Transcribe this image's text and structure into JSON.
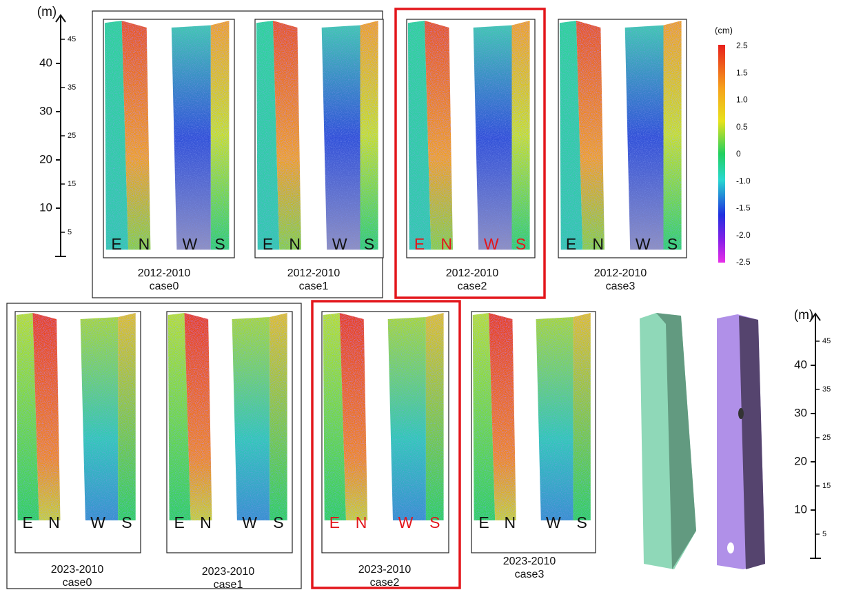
{
  "left_scale": {
    "unit": "(m)",
    "major": [
      "10",
      "20",
      "30",
      "40"
    ],
    "minor": [
      "5",
      "15",
      "25",
      "35",
      "45"
    ]
  },
  "colorbar": {
    "unit": "(cm)",
    "labels": [
      "2.5",
      "1.5",
      "1.0",
      "0.5",
      "0",
      "-1.0",
      "-1.5",
      "-2.0",
      "-2.5"
    ]
  },
  "rows": [
    {
      "panels": [
        {
          "period": "2012-2010",
          "case": "case0",
          "faces": [
            "E",
            "N",
            "W",
            "S"
          ],
          "highlight": false
        },
        {
          "period": "2012-2010",
          "case": "case1",
          "faces": [
            "E",
            "N",
            "W",
            "S"
          ],
          "highlight": false
        },
        {
          "period": "2012-2010",
          "case": "case2",
          "faces": [
            "E",
            "N",
            "W",
            "S"
          ],
          "highlight": true
        },
        {
          "period": "2012-2010",
          "case": "case3",
          "faces": [
            "E",
            "N",
            "W",
            "S"
          ],
          "highlight": false
        }
      ]
    },
    {
      "panels": [
        {
          "period": "2023-2010",
          "case": "case0",
          "faces": [
            "E",
            "N",
            "W",
            "S"
          ],
          "highlight": false
        },
        {
          "period": "2023-2010",
          "case": "case1",
          "faces": [
            "E",
            "N",
            "W",
            "S"
          ],
          "highlight": false
        },
        {
          "period": "2023-2010",
          "case": "case2",
          "faces": [
            "E",
            "N",
            "W",
            "S"
          ],
          "highlight": true
        },
        {
          "period": "2023-2010",
          "case": "case3",
          "faces": [
            "E",
            "N",
            "W",
            "S"
          ],
          "highlight": false
        }
      ]
    }
  ],
  "right_scale": {
    "unit": "(m)",
    "major": [
      "10",
      "20",
      "30",
      "40"
    ],
    "minor": [
      "5",
      "15",
      "25",
      "35",
      "45"
    ]
  }
}
